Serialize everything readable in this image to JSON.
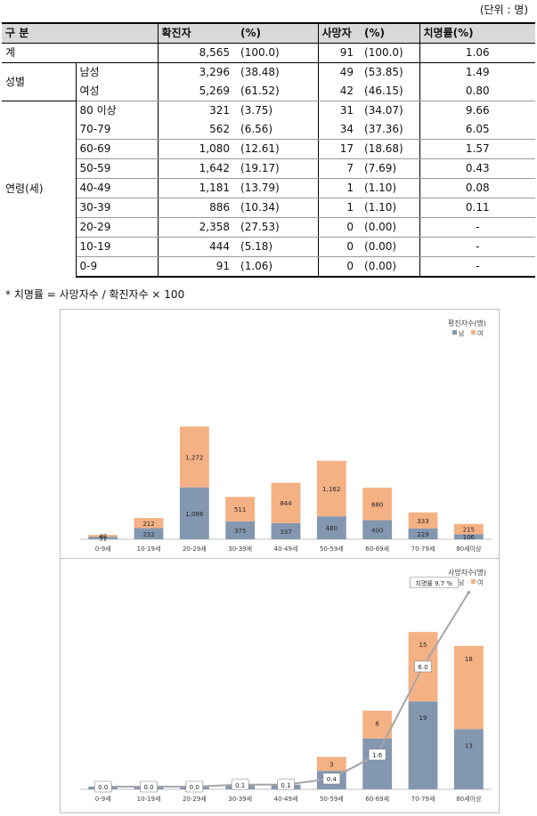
{
  "unit_label": "(단위 : 명)",
  "table": {
    "headers": {
      "category": "구 분",
      "cases": "확진자",
      "cases_pct": "(%)",
      "deaths": "사망자",
      "deaths_pct": "(%)",
      "cfr": "치명률(%)"
    },
    "total": {
      "label": "계",
      "cases": "8,565",
      "cases_pct": "(100.0)",
      "deaths": "91",
      "deaths_pct": "(100.0)",
      "cfr": "1.06"
    },
    "sex_group": "성별",
    "sex": [
      {
        "label": "남성",
        "cases": "3,296",
        "cases_pct": "(38.48)",
        "deaths": "49",
        "deaths_pct": "(53.85)",
        "cfr": "1.49"
      },
      {
        "label": "여성",
        "cases": "5,269",
        "cases_pct": "(61.52)",
        "deaths": "42",
        "deaths_pct": "(46.15)",
        "cfr": "0.80"
      }
    ],
    "age_group": "연령(세)",
    "age": [
      {
        "label": "80 이상",
        "cases": "321",
        "cases_pct": "(3.75)",
        "deaths": "31",
        "deaths_pct": "(34.07)",
        "cfr": "9.66"
      },
      {
        "label": "70-79",
        "cases": "562",
        "cases_pct": "(6.56)",
        "deaths": "34",
        "deaths_pct": "(37.36)",
        "cfr": "6.05"
      },
      {
        "label": "60-69",
        "cases": "1,080",
        "cases_pct": "(12.61)",
        "deaths": "17",
        "deaths_pct": "(18.68)",
        "cfr": "1.57"
      },
      {
        "label": "50-59",
        "cases": "1,642",
        "cases_pct": "(19.17)",
        "deaths": "7",
        "deaths_pct": "(7.69)",
        "cfr": "0.43"
      },
      {
        "label": "40-49",
        "cases": "1,181",
        "cases_pct": "(13.79)",
        "deaths": "1",
        "deaths_pct": "(1.10)",
        "cfr": "0.08"
      },
      {
        "label": "30-39",
        "cases": "886",
        "cases_pct": "(10.34)",
        "deaths": "1",
        "deaths_pct": "(1.10)",
        "cfr": "0.11"
      },
      {
        "label": "20-29",
        "cases": "2,358",
        "cases_pct": "(27.53)",
        "deaths": "0",
        "deaths_pct": "(0.00)",
        "cfr": "-"
      },
      {
        "label": "10-19",
        "cases": "444",
        "cases_pct": "(5.18)",
        "deaths": "0",
        "deaths_pct": "(0.00)",
        "cfr": "-"
      },
      {
        "label": "0-9",
        "cases": "91",
        "cases_pct": "(1.06)",
        "deaths": "0",
        "deaths_pct": "(0.00)",
        "cfr": "-"
      }
    ]
  },
  "footnote": "*  치명률 = 사망자수 / 확진자수 × 100",
  "colors": {
    "male": "#8497b0",
    "female": "#f4b183",
    "line": "#a6a6a6"
  },
  "chart_data": [
    {
      "type": "bar",
      "stacked": true,
      "title": "확진자수(명)",
      "legend_position": "top-right",
      "categories": [
        "0-9세",
        "10-19세",
        "20-29세",
        "30-39세",
        "40-49세",
        "50-59세",
        "60-69세",
        "70-79세",
        "80세이상"
      ],
      "series": [
        {
          "name": "남",
          "values": [
            51,
            232,
            1086,
            375,
            337,
            480,
            400,
            229,
            106
          ]
        },
        {
          "name": "여",
          "values": [
            40,
            212,
            1272,
            511,
            844,
            1162,
            680,
            333,
            215
          ]
        }
      ]
    },
    {
      "type": "bar",
      "stacked": true,
      "title": "사망자수(명)",
      "legend_position": "top-right",
      "categories": [
        "0-9세",
        "10-19세",
        "20-29세",
        "30-39세",
        "40-49세",
        "50-59세",
        "60-69세",
        "70-79세",
        "80세이상"
      ],
      "series": [
        {
          "name": "남",
          "values": [
            0,
            0,
            0,
            1,
            1,
            4,
            11,
            19,
            13
          ],
          "labels": [
            "",
            "",
            "",
            "",
            "",
            "",
            "11",
            "19",
            "13"
          ]
        },
        {
          "name": "여",
          "values": [
            0,
            0,
            0,
            0,
            0,
            3,
            6,
            15,
            18
          ],
          "labels": [
            "",
            "",
            "",
            "",
            "",
            "3",
            "6",
            "15",
            "18"
          ]
        }
      ],
      "line": {
        "values": [
          0.0,
          0.0,
          0.0,
          0.1,
          0.1,
          0.4,
          1.6,
          6.0,
          9.7
        ],
        "labels": [
          "0.0",
          "0.0",
          "0.0",
          "0.1",
          "0.1",
          "0.4",
          "1.6",
          "6.0",
          "치명률 9.7 %"
        ]
      }
    }
  ]
}
